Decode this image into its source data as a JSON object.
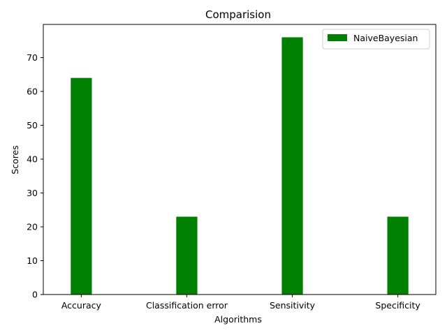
{
  "chart_data": {
    "type": "bar",
    "title": "Comparision",
    "xlabel": "Algorithms",
    "ylabel": "Scores",
    "categories": [
      "Accuracy",
      "Classification error",
      "Sensitivity",
      "Specificity"
    ],
    "series": [
      {
        "name": "NaiveBayesian",
        "values": [
          64,
          23,
          76,
          23
        ],
        "color": "#008000"
      }
    ],
    "ylim": [
      0,
      79.8
    ],
    "yticks": [
      0,
      10,
      20,
      30,
      40,
      50,
      60,
      70
    ],
    "grid": false,
    "legend": "top-right"
  }
}
